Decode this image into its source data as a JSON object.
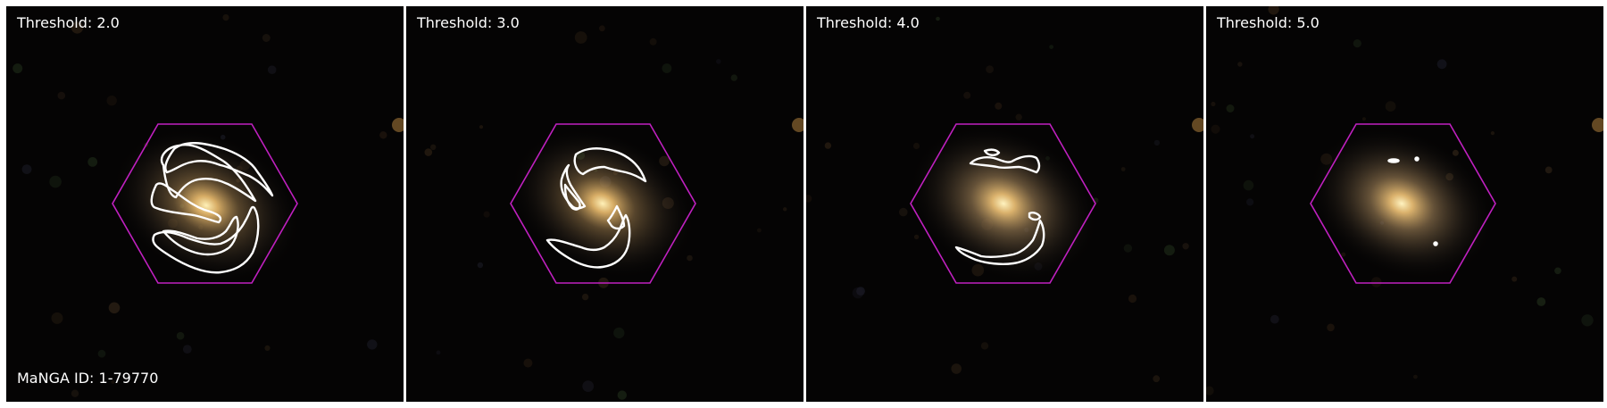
{
  "panels": [
    {
      "threshold_label": "Threshold: 2.0"
    },
    {
      "threshold_label": "Threshold: 3.0"
    },
    {
      "threshold_label": "Threshold: 4.0"
    },
    {
      "threshold_label": "Threshold: 5.0"
    }
  ],
  "galaxy_id_label": "MaNGA ID: 1-79770",
  "colors": {
    "background": "#050404",
    "hexagon": "#c020c0",
    "contour": "#ffffff",
    "galaxy_core": "#ffe9a8",
    "galaxy_halo": "#8a6a40",
    "divider": "#ffffff"
  }
}
